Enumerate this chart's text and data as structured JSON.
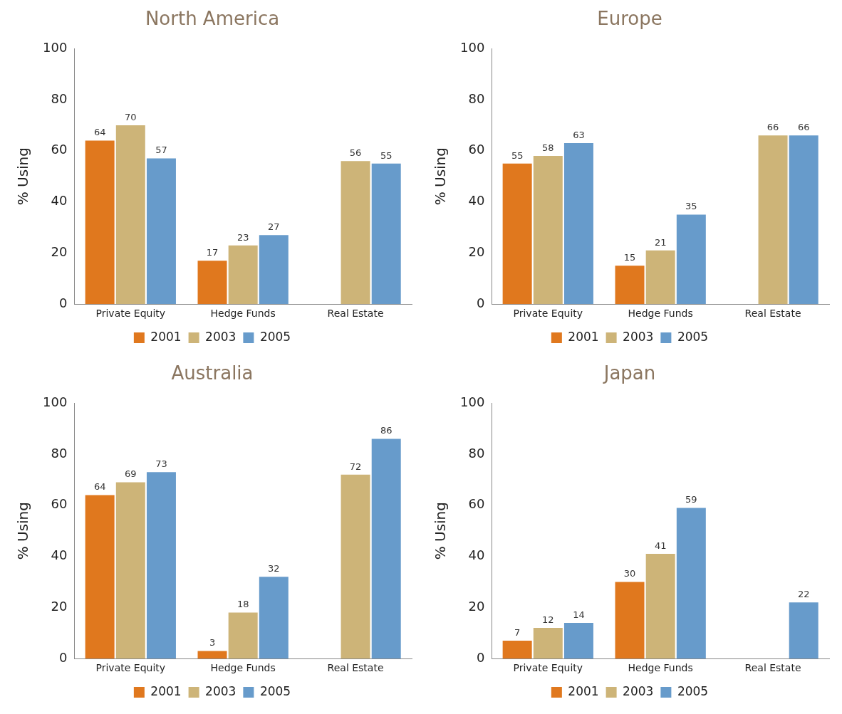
{
  "chart_data": [
    {
      "type": "bar",
      "title": "North America",
      "ylabel": "% Using",
      "categories": [
        "Private Equity",
        "Hedge Funds",
        "Real Estate"
      ],
      "ylim": [
        0,
        100
      ],
      "yticks": [
        0,
        20,
        40,
        60,
        80,
        100
      ],
      "data_labels": true,
      "legend": "bottom",
      "series": [
        {
          "name": "2001",
          "color": "#e0781e",
          "values": [
            64,
            17,
            null
          ]
        },
        {
          "name": "2003",
          "color": "#cdb478",
          "values": [
            70,
            23,
            56
          ]
        },
        {
          "name": "2005",
          "color": "#679bcb",
          "values": [
            57,
            27,
            55
          ]
        }
      ]
    },
    {
      "type": "bar",
      "title": "Europe",
      "ylabel": "% Using",
      "categories": [
        "Private Equity",
        "Hedge Funds",
        "Real Estate"
      ],
      "ylim": [
        0,
        100
      ],
      "yticks": [
        0,
        20,
        40,
        60,
        80,
        100
      ],
      "data_labels": true,
      "legend": "bottom",
      "series": [
        {
          "name": "2001",
          "color": "#e0781e",
          "values": [
            55,
            15,
            null
          ]
        },
        {
          "name": "2003",
          "color": "#cdb478",
          "values": [
            58,
            21,
            66
          ]
        },
        {
          "name": "2005",
          "color": "#679bcb",
          "values": [
            63,
            35,
            66
          ]
        }
      ]
    },
    {
      "type": "bar",
      "title": "Australia",
      "ylabel": "% Using",
      "categories": [
        "Private Equity",
        "Hedge Funds",
        "Real Estate"
      ],
      "ylim": [
        0,
        100
      ],
      "yticks": [
        0,
        20,
        40,
        60,
        80,
        100
      ],
      "data_labels": true,
      "legend": "bottom",
      "series": [
        {
          "name": "2001",
          "color": "#e0781e",
          "values": [
            64,
            3,
            null
          ]
        },
        {
          "name": "2003",
          "color": "#cdb478",
          "values": [
            69,
            18,
            72
          ]
        },
        {
          "name": "2005",
          "color": "#679bcb",
          "values": [
            73,
            32,
            86
          ]
        }
      ]
    },
    {
      "type": "bar",
      "title": "Japan",
      "ylabel": "% Using",
      "categories": [
        "Private Equity",
        "Hedge Funds",
        "Real Estate"
      ],
      "ylim": [
        0,
        100
      ],
      "yticks": [
        0,
        20,
        40,
        60,
        80,
        100
      ],
      "data_labels": true,
      "legend": "bottom",
      "series": [
        {
          "name": "2001",
          "color": "#e0781e",
          "values": [
            7,
            30,
            null
          ]
        },
        {
          "name": "2003",
          "color": "#cdb478",
          "values": [
            12,
            41,
            null
          ]
        },
        {
          "name": "2005",
          "color": "#679bcb",
          "values": [
            14,
            59,
            22
          ]
        }
      ]
    }
  ]
}
